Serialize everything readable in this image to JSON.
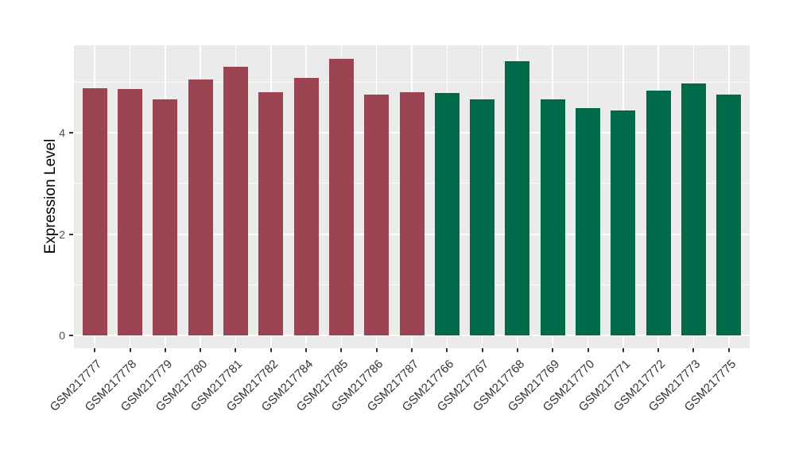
{
  "chart_data": {
    "type": "bar",
    "title": "",
    "ylabel": "Expression Level",
    "xlabel": "",
    "categories": [
      "GSM217777",
      "GSM217778",
      "GSM217779",
      "GSM217780",
      "GSM217781",
      "GSM217782",
      "GSM217784",
      "GSM217785",
      "GSM217786",
      "GSM217787",
      "GSM217766",
      "GSM217767",
      "GSM217768",
      "GSM217769",
      "GSM217770",
      "GSM217771",
      "GSM217772",
      "GSM217773",
      "GSM217775"
    ],
    "values": [
      4.88,
      4.87,
      4.66,
      5.05,
      5.31,
      4.8,
      5.08,
      5.46,
      4.76,
      4.8,
      4.79,
      4.67,
      5.42,
      4.66,
      4.49,
      4.44,
      4.83,
      4.98,
      4.75
    ],
    "groups": [
      "g1",
      "g1",
      "g1",
      "g1",
      "g1",
      "g1",
      "g1",
      "g1",
      "g1",
      "g1",
      "g2",
      "g2",
      "g2",
      "g2",
      "g2",
      "g2",
      "g2",
      "g2",
      "g2"
    ],
    "group_colors": {
      "g1": "#9D4452",
      "g2": "#006B4A"
    },
    "yticks": [
      0,
      2,
      4
    ],
    "minor_yticks": [
      1,
      3,
      5
    ],
    "ylim": [
      -0.25,
      5.73
    ],
    "grid": "on",
    "legend_position": "none",
    "panel_background": "#EBEBEB",
    "grid_color": "#FFFFFF"
  }
}
